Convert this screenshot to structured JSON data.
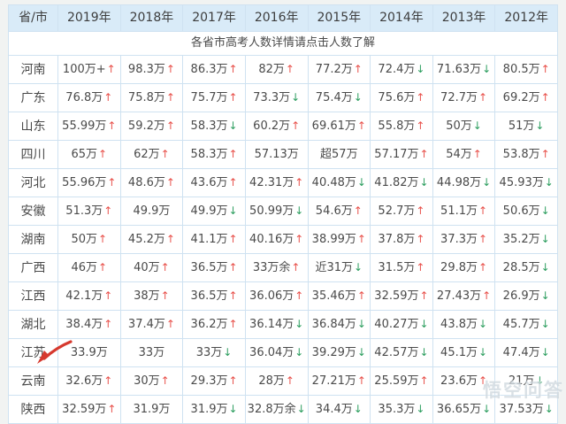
{
  "table": {
    "corner_label": "省/市",
    "years": [
      "2019年",
      "2018年",
      "2017年",
      "2016年",
      "2015年",
      "2014年",
      "2013年",
      "2012年"
    ],
    "banner": "各省市高考人数详情请点击人数了解",
    "rows": [
      {
        "province": "河南",
        "cells": [
          {
            "v": "100万+",
            "a": "up"
          },
          {
            "v": "98.3万",
            "a": "up"
          },
          {
            "v": "86.3万",
            "a": "up"
          },
          {
            "v": "82万",
            "a": "up"
          },
          {
            "v": "77.2万",
            "a": "up"
          },
          {
            "v": "72.4万",
            "a": "down"
          },
          {
            "v": "71.63万",
            "a": "down"
          },
          {
            "v": "80.5万",
            "a": "up"
          }
        ]
      },
      {
        "province": "广东",
        "cells": [
          {
            "v": "76.8万",
            "a": "up"
          },
          {
            "v": "75.8万",
            "a": "up"
          },
          {
            "v": "75.7万",
            "a": "up"
          },
          {
            "v": "73.3万",
            "a": "down"
          },
          {
            "v": "75.4万",
            "a": "down"
          },
          {
            "v": "75.6万",
            "a": "up"
          },
          {
            "v": "72.7万",
            "a": "up"
          },
          {
            "v": "69.2万",
            "a": "up"
          }
        ]
      },
      {
        "province": "山东",
        "cells": [
          {
            "v": "55.99万",
            "a": "up"
          },
          {
            "v": "59.2万",
            "a": "up"
          },
          {
            "v": "58.3万",
            "a": "down"
          },
          {
            "v": "60.2万",
            "a": "up"
          },
          {
            "v": "69.61万",
            "a": "up"
          },
          {
            "v": "55.8万",
            "a": "up"
          },
          {
            "v": "50万",
            "a": "down"
          },
          {
            "v": "51万",
            "a": "down"
          }
        ]
      },
      {
        "province": "四川",
        "cells": [
          {
            "v": "65万",
            "a": "up"
          },
          {
            "v": "62万",
            "a": "up"
          },
          {
            "v": "58.3万",
            "a": "up"
          },
          {
            "v": "57.13万",
            "a": "none"
          },
          {
            "v": "超57万",
            "a": "none"
          },
          {
            "v": "57.17万",
            "a": "up"
          },
          {
            "v": "54万",
            "a": "up"
          },
          {
            "v": "53.8万",
            "a": "up"
          }
        ]
      },
      {
        "province": "河北",
        "cells": [
          {
            "v": "55.96万",
            "a": "up"
          },
          {
            "v": "48.6万",
            "a": "up"
          },
          {
            "v": "43.6万",
            "a": "up"
          },
          {
            "v": "42.31万",
            "a": "up"
          },
          {
            "v": "40.48万",
            "a": "down"
          },
          {
            "v": "41.82万",
            "a": "down"
          },
          {
            "v": "44.98万",
            "a": "down"
          },
          {
            "v": "45.93万",
            "a": "down"
          }
        ]
      },
      {
        "province": "安徽",
        "cells": [
          {
            "v": "51.3万",
            "a": "up"
          },
          {
            "v": "49.9万",
            "a": "none"
          },
          {
            "v": "49.9万",
            "a": "down"
          },
          {
            "v": "50.99万",
            "a": "down"
          },
          {
            "v": "54.6万",
            "a": "up"
          },
          {
            "v": "52.7万",
            "a": "up"
          },
          {
            "v": "51.1万",
            "a": "up"
          },
          {
            "v": "50.6万",
            "a": "down"
          }
        ]
      },
      {
        "province": "湖南",
        "cells": [
          {
            "v": "50万",
            "a": "up"
          },
          {
            "v": "45.2万",
            "a": "up"
          },
          {
            "v": "41.1万",
            "a": "up"
          },
          {
            "v": "40.16万",
            "a": "up"
          },
          {
            "v": "38.99万",
            "a": "up"
          },
          {
            "v": "37.8万",
            "a": "up"
          },
          {
            "v": "37.3万",
            "a": "up"
          },
          {
            "v": "35.2万",
            "a": "down"
          }
        ]
      },
      {
        "province": "广西",
        "cells": [
          {
            "v": "46万",
            "a": "up"
          },
          {
            "v": "40万",
            "a": "up"
          },
          {
            "v": "36.5万",
            "a": "up"
          },
          {
            "v": "33万余",
            "a": "up"
          },
          {
            "v": "近31万",
            "a": "down"
          },
          {
            "v": "31.5万",
            "a": "up"
          },
          {
            "v": "29.8万",
            "a": "up"
          },
          {
            "v": "28.5万",
            "a": "down"
          }
        ]
      },
      {
        "province": "江西",
        "cells": [
          {
            "v": "42.1万",
            "a": "up"
          },
          {
            "v": "38万",
            "a": "up"
          },
          {
            "v": "36.5万",
            "a": "up"
          },
          {
            "v": "36.06万",
            "a": "up"
          },
          {
            "v": "35.46万",
            "a": "up"
          },
          {
            "v": "32.59万",
            "a": "up"
          },
          {
            "v": "27.43万",
            "a": "up"
          },
          {
            "v": "26.9万",
            "a": "down"
          }
        ]
      },
      {
        "province": "湖北",
        "cells": [
          {
            "v": "38.4万",
            "a": "up"
          },
          {
            "v": "37.4万",
            "a": "up"
          },
          {
            "v": "36.2万",
            "a": "up"
          },
          {
            "v": "36.14万",
            "a": "down"
          },
          {
            "v": "36.84万",
            "a": "down"
          },
          {
            "v": "40.27万",
            "a": "down"
          },
          {
            "v": "43.8万",
            "a": "down"
          },
          {
            "v": "45.7万",
            "a": "down"
          }
        ]
      },
      {
        "province": "江苏",
        "cells": [
          {
            "v": "33.9万",
            "a": "none"
          },
          {
            "v": "33万",
            "a": "none"
          },
          {
            "v": "33万",
            "a": "down"
          },
          {
            "v": "36.04万",
            "a": "down"
          },
          {
            "v": "39.29万",
            "a": "down"
          },
          {
            "v": "42.57万",
            "a": "down"
          },
          {
            "v": "45.1万",
            "a": "down"
          },
          {
            "v": "47.4万",
            "a": "down"
          }
        ]
      },
      {
        "province": "云南",
        "cells": [
          {
            "v": "32.6万",
            "a": "up"
          },
          {
            "v": "30万",
            "a": "up"
          },
          {
            "v": "29.3万",
            "a": "up"
          },
          {
            "v": "28万",
            "a": "up"
          },
          {
            "v": "27.21万",
            "a": "up"
          },
          {
            "v": "25.59万",
            "a": "up"
          },
          {
            "v": "23.6万",
            "a": "up"
          },
          {
            "v": "21万",
            "a": "down"
          }
        ]
      },
      {
        "province": "陕西",
        "cells": [
          {
            "v": "32.59万",
            "a": "up"
          },
          {
            "v": "31.9万",
            "a": "none"
          },
          {
            "v": "31.9万",
            "a": "down"
          },
          {
            "v": "32.8万余",
            "a": "down"
          },
          {
            "v": "34.4万",
            "a": "down"
          },
          {
            "v": "35.3万",
            "a": "down"
          },
          {
            "v": "36.65万",
            "a": "down"
          },
          {
            "v": "37.53万",
            "a": "down"
          }
        ]
      }
    ]
  },
  "icons": {
    "up_arrow": "↑",
    "down_arrow": "↓"
  },
  "annotation": {
    "type": "hand-drawn-arrow",
    "points_to": "云南",
    "color": "#d6392e"
  },
  "watermark": "悟空问答",
  "colors": {
    "up": "#e8504a",
    "down": "#2d9e5f",
    "header_bg": "#d9ebf8",
    "border": "#cfe2f1",
    "page_bg": "#f1f3f2"
  }
}
